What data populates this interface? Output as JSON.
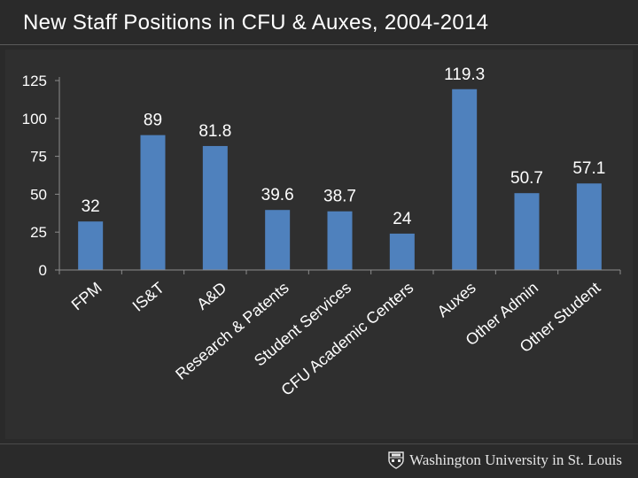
{
  "title": "New Staff Positions in CFU & Auxes, 2004-2014",
  "footer": {
    "logo_text": "Washington University in St. Louis"
  },
  "colors": {
    "background": "#2a2a2a",
    "panel": "#2f2f2f",
    "bar": "#4f81bd",
    "text": "#ffffff",
    "axis": "#8c8c8c"
  },
  "chart_data": {
    "type": "bar",
    "title": "",
    "xlabel": "",
    "ylabel": "",
    "categories": [
      "FPM",
      "IS&T",
      "A&D",
      "Research & Patents",
      "Student Services",
      "CFU Academic Centers",
      "Auxes",
      "Other Admin",
      "Other Student"
    ],
    "values": [
      32,
      89,
      81.8,
      39.6,
      38.7,
      24,
      119.3,
      50.7,
      57.1
    ],
    "data_labels": [
      "32",
      "89",
      "81.8",
      "39.6",
      "38.7",
      "24",
      "119.3",
      "50.7",
      "57.1"
    ],
    "ylim": [
      0,
      125
    ],
    "yticks": [
      "0",
      "25",
      "50",
      "75",
      "100",
      "125"
    ],
    "grid": false,
    "legend": "none"
  }
}
